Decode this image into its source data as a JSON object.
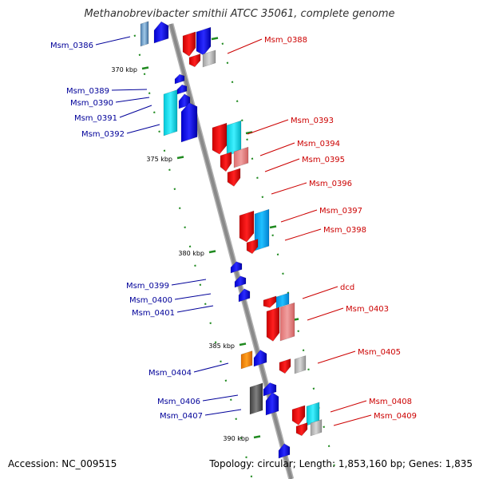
{
  "title": "Methanobrevibacter smithii ATCC 35061, complete genome",
  "footer": {
    "accession": "Accession: NC_009515",
    "summary": "Topology: circular; Length: 1,853,160 bp; Genes: 1,835"
  },
  "colors": {
    "forward_label": "#cc0000",
    "reverse_label": "#000099",
    "backbone": "#8a8a8a",
    "tick": "#208a20"
  },
  "scale_labels": [
    "370 kbp",
    "375 kbp",
    "380 kbp",
    "385 kbp",
    "390 kbp"
  ],
  "forward_genes": [
    "Msm_0388",
    "Msm_0393",
    "Msm_0394",
    "Msm_0395",
    "Msm_0396",
    "Msm_0397",
    "Msm_0398",
    "dcd",
    "Msm_0403",
    "Msm_0405",
    "Msm_0408",
    "Msm_0409"
  ],
  "reverse_genes": [
    "Msm_0386",
    "Msm_0389",
    "Msm_0390",
    "Msm_0391",
    "Msm_0392",
    "Msm_0399",
    "Msm_0400",
    "Msm_0401",
    "Msm_0404",
    "Msm_0406",
    "Msm_0407"
  ]
}
